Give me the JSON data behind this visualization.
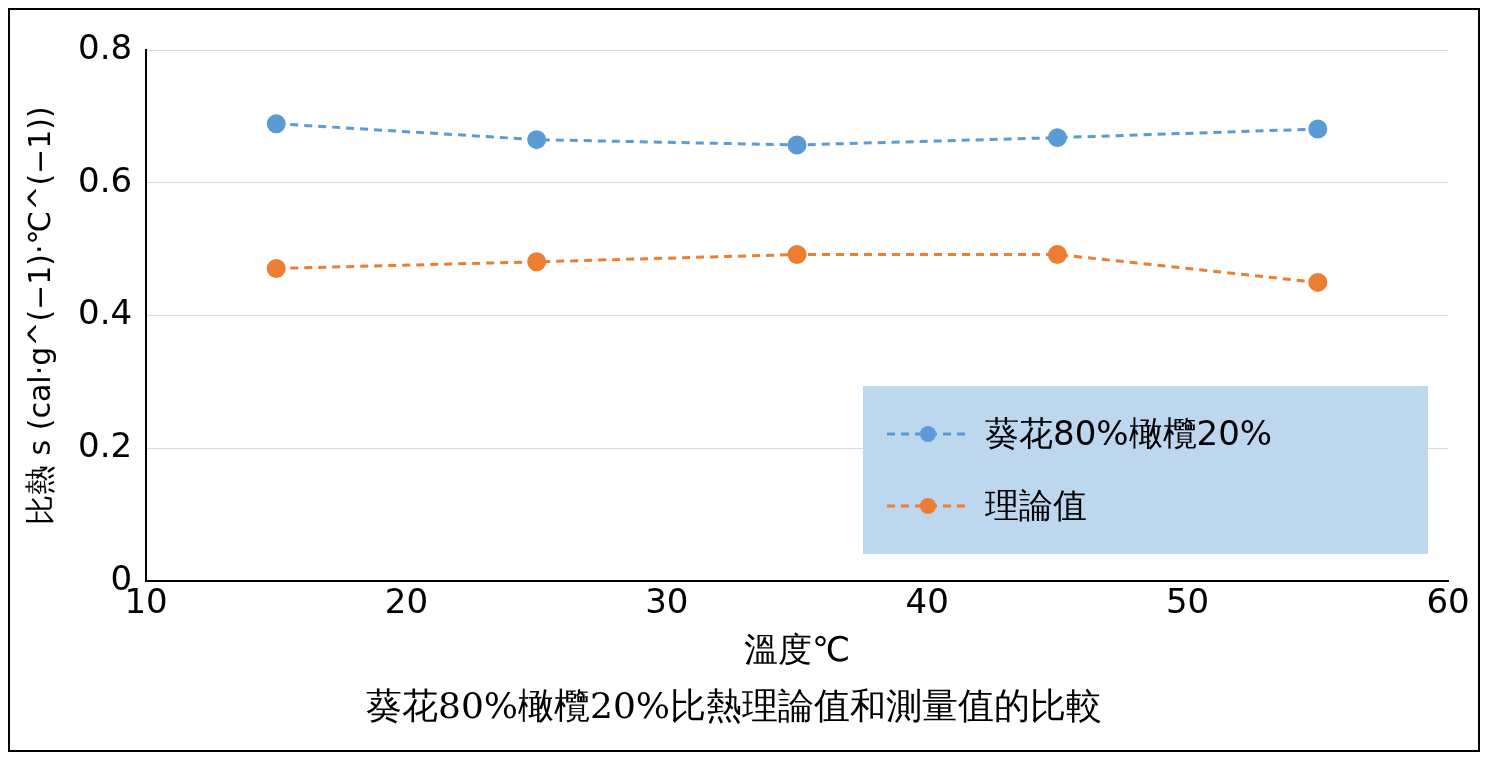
{
  "chart_data": {
    "type": "line",
    "title": "葵花80%橄欖20%比熱理論值和測量值的比較",
    "xlabel": "溫度℃",
    "ylabel": "比熱 s (cal·g^(−1)·℃^(−1))",
    "x": [
      15,
      25,
      35,
      45,
      55
    ],
    "series": [
      {
        "name": "葵花80%橄欖20%",
        "color": "#5b9bd5",
        "values": [
          0.689,
          0.665,
          0.657,
          0.668,
          0.681
        ]
      },
      {
        "name": "理論值",
        "color": "#ed7d31",
        "values": [
          0.471,
          0.481,
          0.492,
          0.492,
          0.45
        ]
      }
    ],
    "xlim": [
      10,
      60
    ],
    "xticks": [
      10,
      20,
      30,
      40,
      50,
      60
    ],
    "ylim": [
      0,
      0.8
    ],
    "yticks": [
      0,
      0.2,
      0.4,
      0.6,
      0.8
    ],
    "grid": "y",
    "legend": "bottom right",
    "marker": "circle",
    "line_style": "dashed"
  }
}
